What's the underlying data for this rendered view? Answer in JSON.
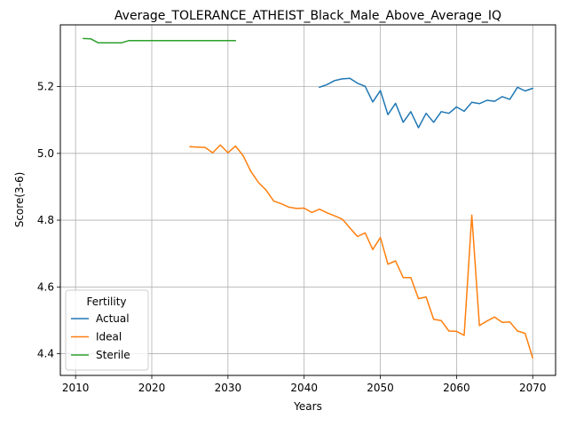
{
  "chart_data": {
    "type": "line",
    "title": "Average_TOLERANCE_ATHEIST_Black_Male_Above_Average_IQ",
    "xlabel": "Years",
    "ylabel": "Score(3-6)",
    "xlim": [
      2008,
      2073
    ],
    "ylim": [
      4.335,
      5.385
    ],
    "xticks": [
      2010,
      2020,
      2030,
      2040,
      2050,
      2060,
      2070
    ],
    "yticks": [
      4.4,
      4.6,
      4.8,
      5.0,
      5.2
    ],
    "ytick_labels": [
      "4.4",
      "4.6",
      "4.8",
      "5.0",
      "5.2"
    ],
    "grid": true,
    "legend": {
      "title": "Fertility",
      "position": "lower-left"
    },
    "series": [
      {
        "name": "Actual",
        "color": "#1f77b4",
        "x": [
          2042,
          2043,
          2044,
          2045,
          2046,
          2047,
          2048,
          2049,
          2050,
          2051,
          2052,
          2053,
          2054,
          2055,
          2056,
          2057,
          2058,
          2059,
          2060,
          2061,
          2062,
          2063,
          2064,
          2065,
          2066,
          2067,
          2068,
          2069,
          2070
        ],
        "y": [
          5.198,
          5.206,
          5.218,
          5.223,
          5.225,
          5.21,
          5.201,
          5.154,
          5.188,
          5.116,
          5.15,
          5.093,
          5.125,
          5.077,
          5.12,
          5.093,
          5.125,
          5.12,
          5.139,
          5.126,
          5.153,
          5.149,
          5.159,
          5.156,
          5.17,
          5.162,
          5.198,
          5.187,
          5.195
        ]
      },
      {
        "name": "Ideal",
        "color": "#ff7f0e",
        "x": [
          2025,
          2026,
          2027,
          2028,
          2029,
          2030,
          2031,
          2032,
          2033,
          2034,
          2035,
          2036,
          2037,
          2038,
          2039,
          2040,
          2041,
          2042,
          2043,
          2044,
          2045,
          2046,
          2047,
          2048,
          2049,
          2050,
          2051,
          2052,
          2053,
          2054,
          2055,
          2056,
          2057,
          2058,
          2059,
          2060,
          2061,
          2062,
          2063,
          2064,
          2065,
          2066,
          2067,
          2068,
          2069,
          2070
        ],
        "y": [
          5.02,
          5.019,
          5.018,
          5.002,
          5.025,
          5.002,
          5.022,
          4.993,
          4.946,
          4.913,
          4.89,
          4.857,
          4.849,
          4.839,
          4.835,
          4.836,
          4.823,
          4.833,
          4.822,
          4.813,
          4.803,
          4.777,
          4.751,
          4.762,
          4.712,
          4.748,
          4.668,
          4.678,
          4.628,
          4.628,
          4.565,
          4.57,
          4.503,
          4.499,
          4.468,
          4.467,
          4.455,
          4.815,
          4.484,
          4.498,
          4.51,
          4.494,
          4.495,
          4.468,
          4.461,
          4.387
        ]
      },
      {
        "name": "Sterile",
        "color": "#2ca02c",
        "x": [
          2011,
          2012,
          2013,
          2014,
          2015,
          2016,
          2017,
          2018,
          2019,
          2020,
          2021,
          2022,
          2023,
          2024,
          2025,
          2026,
          2027,
          2028,
          2029,
          2030,
          2031
        ],
        "y": [
          5.344,
          5.343,
          5.331,
          5.331,
          5.331,
          5.331,
          5.338,
          5.338,
          5.338,
          5.338,
          5.338,
          5.338,
          5.338,
          5.338,
          5.338,
          5.338,
          5.338,
          5.338,
          5.338,
          5.338,
          5.338
        ]
      }
    ]
  }
}
